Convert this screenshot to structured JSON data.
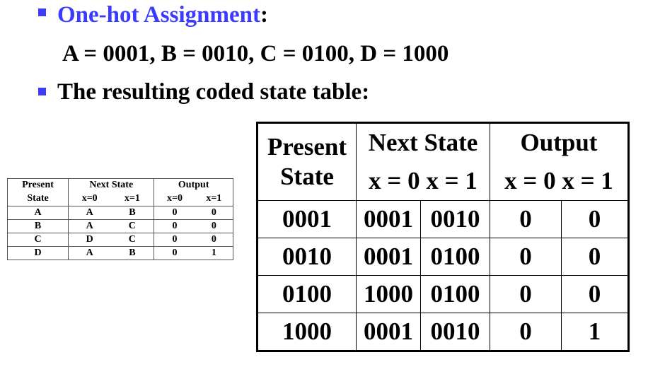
{
  "bullets": [
    {
      "label": "One-hot Assignment",
      "suffix": ":",
      "color": "#3b3bff"
    },
    {
      "label": "The resulting coded state table:"
    }
  ],
  "assignment": "A = 0001, B = 0010, C = 0100, D = 1000",
  "small_table": {
    "headers": {
      "present1": "Present",
      "present2": "State",
      "next": "Next State",
      "output": "Output",
      "x0": "x=0",
      "x1": "x=1",
      "ox0": "x=0",
      "ox1": "x=1"
    },
    "rows": [
      [
        "A",
        "A",
        "B",
        "0",
        "0"
      ],
      [
        "B",
        "A",
        "C",
        "0",
        "0"
      ],
      [
        "C",
        "D",
        "C",
        "0",
        "0"
      ],
      [
        "D",
        "A",
        "B",
        "0",
        "1"
      ]
    ]
  },
  "coded_table": {
    "headers": {
      "present1": "Present",
      "present2": "State",
      "next": "Next State",
      "next_sub": "x = 0 x = 1",
      "output": "Output",
      "output_sub": "x = 0 x = 1"
    },
    "rows": [
      [
        "0001",
        "0001",
        "0010",
        "0",
        "0"
      ],
      [
        "0010",
        "0001",
        "0100",
        "0",
        "0"
      ],
      [
        "0100",
        "1000",
        "0100",
        "0",
        "0"
      ],
      [
        "1000",
        "0001",
        "0010",
        "0",
        "1"
      ]
    ]
  }
}
